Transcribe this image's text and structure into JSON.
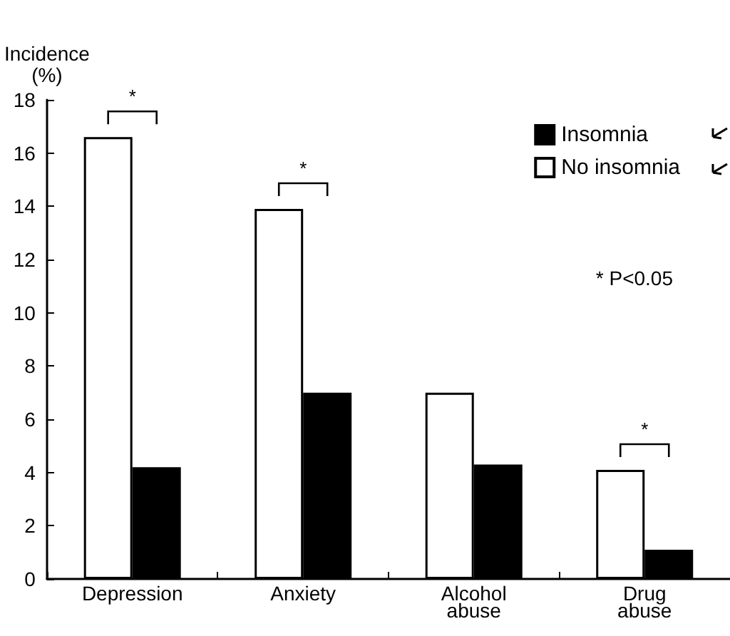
{
  "chart_data": {
    "type": "bar",
    "ylabel": "Incidence\n(%)",
    "categories": [
      "Depression",
      "Anxiety",
      "Alcohol\nabuse",
      "Drug\nabuse"
    ],
    "series": [
      {
        "name": "No insomnia",
        "color": "#ffffff",
        "values": [
          16.6,
          13.9,
          7.0,
          4.1
        ]
      },
      {
        "name": "Insomnia",
        "color": "#000000",
        "values": [
          4.2,
          7.0,
          4.3,
          1.1
        ]
      }
    ],
    "ylim": [
      0,
      18
    ],
    "yticks": [
      0,
      2,
      4,
      6,
      8,
      10,
      12,
      14,
      16,
      18
    ],
    "grid": false,
    "legend": "top right",
    "annotations": [
      {
        "text": "*",
        "x": "Depression",
        "y": 16.6
      },
      {
        "text": "*",
        "x": "Anxiety",
        "y": 13.9
      },
      {
        "text": "*",
        "x": "Drug\nabuse",
        "y": 4.1
      },
      "* P<0.05"
    ]
  }
}
